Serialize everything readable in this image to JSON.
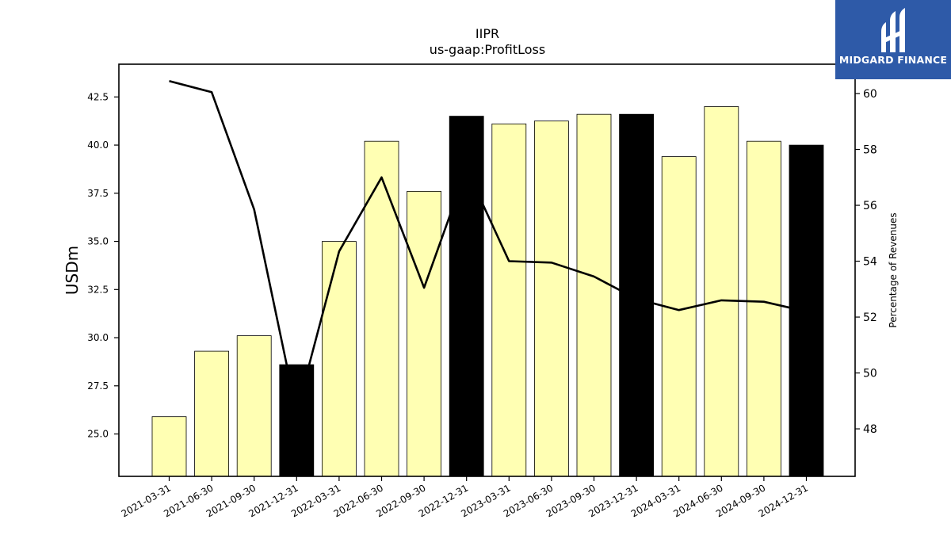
{
  "chart_data": {
    "type": "bar",
    "title": "IIPR",
    "subtitle": "us-gaap:ProfitLoss",
    "ylabel": "USDm",
    "y2label": "Percentage of Revenues",
    "ylim": [
      22.8,
      44.2
    ],
    "y2lim": [
      46.3,
      61.05
    ],
    "yticks": [
      "25.0",
      "27.5",
      "30.0",
      "32.5",
      "35.0",
      "37.5",
      "40.0",
      "42.5"
    ],
    "y2ticks": [
      "48",
      "50",
      "52",
      "54",
      "56",
      "58",
      "60"
    ],
    "categories": [
      "2021-03-31",
      "2021-06-30",
      "2021-09-30",
      "2021-12-31",
      "2022-03-31",
      "2022-06-30",
      "2022-09-30",
      "2022-12-31",
      "2023-03-31",
      "2023-06-30",
      "2023-09-30",
      "2023-12-31",
      "2024-03-31",
      "2024-06-30",
      "2024-09-30",
      "2024-12-31"
    ],
    "series": [
      {
        "kind": "bar",
        "axis": "left",
        "values": [
          25.9,
          29.3,
          30.1,
          28.6,
          35.0,
          40.2,
          37.6,
          41.5,
          41.1,
          41.25,
          41.6,
          41.6,
          39.4,
          42.0,
          40.2,
          40.0
        ],
        "fiscal_year_end": [
          false,
          false,
          false,
          true,
          false,
          false,
          false,
          true,
          false,
          false,
          false,
          true,
          false,
          false,
          false,
          true
        ]
      },
      {
        "kind": "line",
        "axis": "right",
        "values": [
          60.45,
          60.05,
          55.85,
          48.6,
          54.35,
          57.0,
          53.05,
          57.3,
          54.0,
          53.95,
          53.45,
          52.65,
          52.25,
          52.6,
          52.55,
          52.2
        ]
      }
    ],
    "colors": {
      "bar": "#ffffb3",
      "bar_year_end": "#000000",
      "bar_edge": "#000000",
      "line": "#000000"
    },
    "grid": false,
    "legend": "none"
  },
  "logo": {
    "text": "MIDGARD FINANCE",
    "background": "#2e5aa8"
  }
}
